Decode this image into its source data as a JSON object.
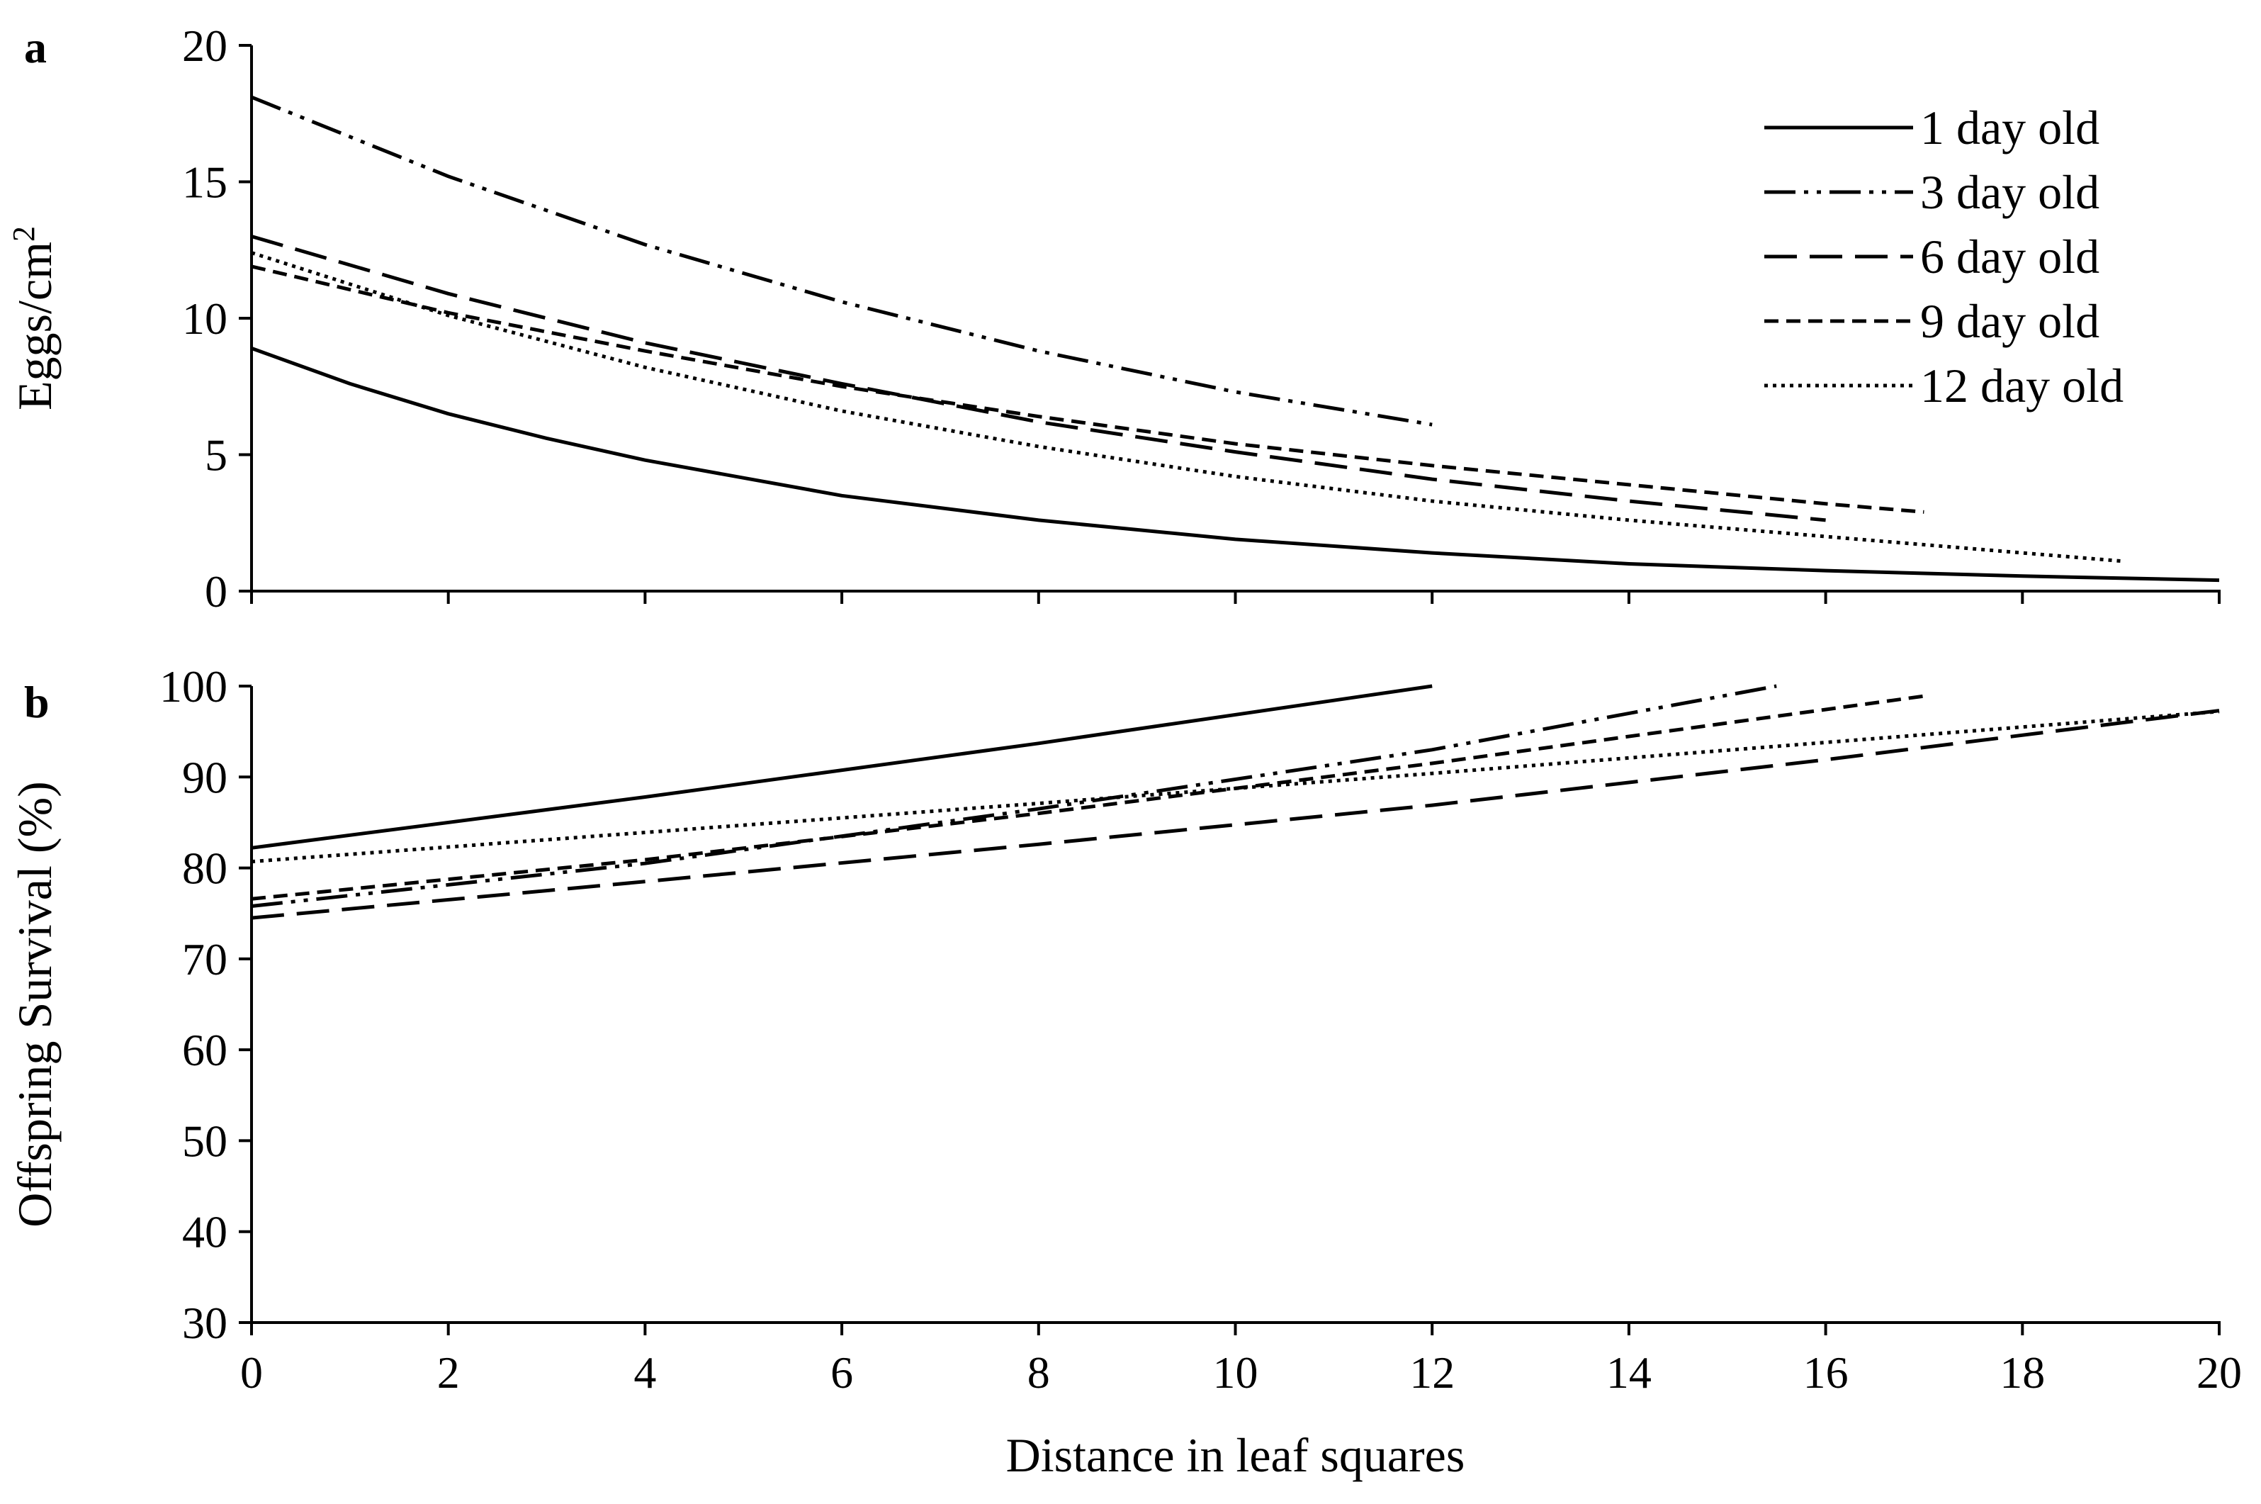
{
  "chart_data": [
    {
      "type": "line",
      "panel_label": "a",
      "title": "",
      "xlabel": "",
      "ylabel": "Eggs/cm",
      "ylabel_superscript": "2",
      "xlim": [
        0,
        20
      ],
      "ylim": [
        0,
        20
      ],
      "x_ticks": [
        0,
        2,
        4,
        6,
        8,
        10,
        12,
        14,
        16,
        18,
        20
      ],
      "y_ticks": [
        0,
        5,
        10,
        15,
        20
      ],
      "x_tick_labels_shown": false,
      "grid": false,
      "legend": "top-right",
      "series": [
        {
          "name": "1 day old",
          "style": "solid",
          "x_end": 20,
          "points": [
            [
              0,
              8.9
            ],
            [
              1,
              7.6
            ],
            [
              2,
              6.5
            ],
            [
              3,
              5.6
            ],
            [
              4,
              4.8
            ],
            [
              6,
              3.5
            ],
            [
              8,
              2.6
            ],
            [
              10,
              1.9
            ],
            [
              12,
              1.4
            ],
            [
              14,
              1.0
            ],
            [
              16,
              0.75
            ],
            [
              18,
              0.55
            ],
            [
              20,
              0.4
            ]
          ]
        },
        {
          "name": "3 day old",
          "style": "dash-dot-dot",
          "x_end": 12,
          "points": [
            [
              0,
              18.1
            ],
            [
              2,
              15.2
            ],
            [
              4,
              12.7
            ],
            [
              6,
              10.6
            ],
            [
              8,
              8.8
            ],
            [
              10,
              7.3
            ],
            [
              12,
              6.1
            ]
          ]
        },
        {
          "name": "6 day old",
          "style": "long-dash",
          "x_end": 16,
          "points": [
            [
              0,
              13.0
            ],
            [
              2,
              10.9
            ],
            [
              4,
              9.1
            ],
            [
              6,
              7.6
            ],
            [
              8,
              6.2
            ],
            [
              10,
              5.1
            ],
            [
              12,
              4.1
            ],
            [
              14,
              3.3
            ],
            [
              16,
              2.6
            ]
          ]
        },
        {
          "name": "9 day old",
          "style": "short-dash",
          "x_end": 17,
          "points": [
            [
              0,
              11.9
            ],
            [
              2,
              10.2
            ],
            [
              4,
              8.8
            ],
            [
              6,
              7.5
            ],
            [
              8,
              6.4
            ],
            [
              10,
              5.4
            ],
            [
              12,
              4.6
            ],
            [
              14,
              3.9
            ],
            [
              16,
              3.2
            ],
            [
              17,
              2.9
            ]
          ]
        },
        {
          "name": "12 day old",
          "style": "dotted",
          "x_end": 19,
          "points": [
            [
              0,
              12.4
            ],
            [
              2,
              10.1
            ],
            [
              4,
              8.2
            ],
            [
              6,
              6.6
            ],
            [
              8,
              5.3
            ],
            [
              10,
              4.2
            ],
            [
              12,
              3.3
            ],
            [
              14,
              2.6
            ],
            [
              16,
              2.0
            ],
            [
              19,
              1.1
            ]
          ]
        }
      ]
    },
    {
      "type": "line",
      "panel_label": "b",
      "title": "",
      "xlabel": "Distance in leaf squares",
      "ylabel": "Offspring Survival (%)",
      "xlim": [
        0,
        20
      ],
      "ylim": [
        30,
        100
      ],
      "x_ticks": [
        0,
        2,
        4,
        6,
        8,
        10,
        12,
        14,
        16,
        18,
        20
      ],
      "y_ticks": [
        30,
        40,
        50,
        60,
        70,
        80,
        90,
        100
      ],
      "x_tick_labels_shown": true,
      "grid": false,
      "legend": "none",
      "series": [
        {
          "name": "1 day old",
          "style": "solid",
          "points": [
            [
              0,
              82.2
            ],
            [
              4,
              87.8
            ],
            [
              8,
              93.7
            ],
            [
              12,
              100.0
            ]
          ]
        },
        {
          "name": "3 day old",
          "style": "dash-dot-dot",
          "points": [
            [
              0,
              75.8
            ],
            [
              4,
              80.5
            ],
            [
              8,
              86.5
            ],
            [
              12,
              93.0
            ],
            [
              15.5,
              100.0
            ]
          ]
        },
        {
          "name": "6 day old",
          "style": "long-dash",
          "points": [
            [
              0,
              74.5
            ],
            [
              4,
              78.5
            ],
            [
              8,
              82.6
            ],
            [
              12,
              86.9
            ],
            [
              16,
              91.9
            ],
            [
              20,
              97.3
            ]
          ]
        },
        {
          "name": "9 day old",
          "style": "short-dash",
          "points": [
            [
              0,
              76.6
            ],
            [
              4,
              80.9
            ],
            [
              8,
              86.0
            ],
            [
              12,
              91.5
            ],
            [
              17,
              98.9
            ]
          ]
        },
        {
          "name": "12 day old",
          "style": "dotted",
          "points": [
            [
              0,
              80.7
            ],
            [
              4,
              83.9
            ],
            [
              8,
              87.1
            ],
            [
              12,
              90.4
            ],
            [
              16,
              93.8
            ],
            [
              20,
              97.2
            ]
          ]
        }
      ]
    }
  ]
}
